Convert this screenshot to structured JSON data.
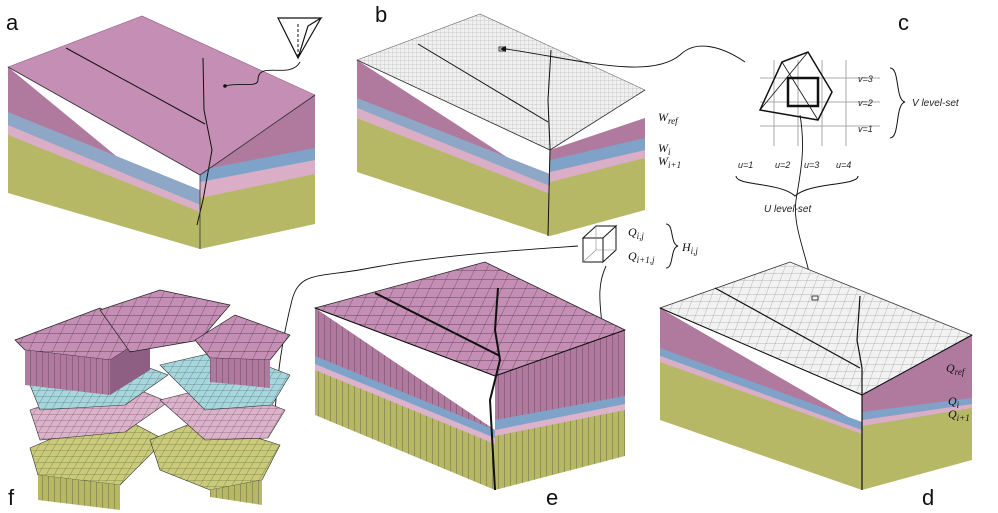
{
  "panel_labels": {
    "a": "a",
    "b": "b",
    "c": "c",
    "d": "d",
    "e": "e",
    "f": "f"
  },
  "labels_b": {
    "w_ref": "W",
    "w_ref_sub": "ref",
    "w_i": "W",
    "w_i_sub": "i",
    "w_i1": "W",
    "w_i1_sub": "i+1"
  },
  "labels_c": {
    "v3": "v=3",
    "v2": "v=2",
    "v1": "v=1",
    "u1": "u=1",
    "u2": "u=2",
    "u3": "u=3",
    "u4": "u=4",
    "v_levelset": "V level-set",
    "u_levelset": "U level-set"
  },
  "labels_d": {
    "q_ref": "Q",
    "q_ref_sub": "ref",
    "q_i": "Q",
    "q_i_sub": "i",
    "q_i1": "Q",
    "q_i1_sub": "i+1"
  },
  "labels_hex": {
    "q_ij": "Q",
    "q_ij_sub": "i,j",
    "q_i1j": "Q",
    "q_i1j_sub": "i+1,j",
    "h_ij": "H",
    "h_ij_sub": "i,j"
  },
  "colors": {
    "pink_top": "#c58eb4",
    "pink_side": "#b07a9f",
    "pink_side_dark": "#8e5f82",
    "blue": "#7fa3c8",
    "light_pink": "#d9aec6",
    "olive": "#b7b866",
    "olive_dark": "#9d9d54",
    "cyan": "#a7d6dc",
    "grey_top": "#efefef"
  }
}
